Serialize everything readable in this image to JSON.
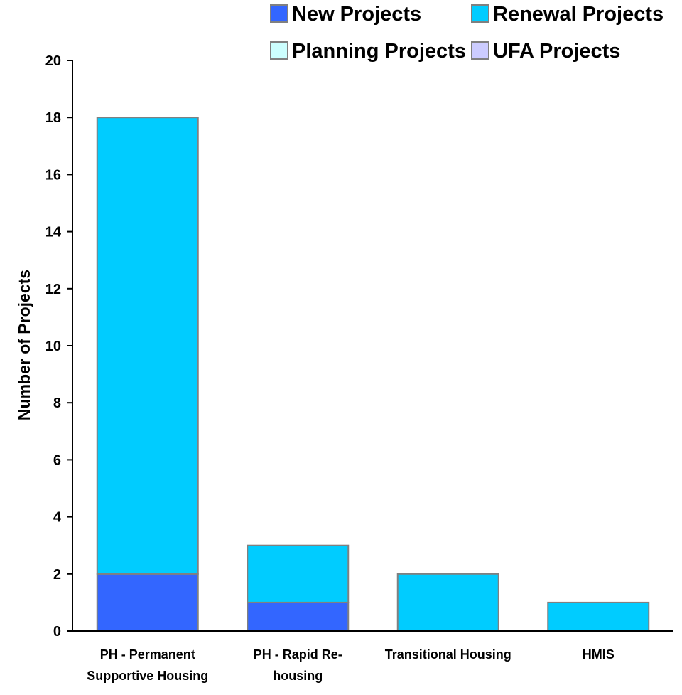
{
  "chart_data": {
    "type": "bar",
    "stacked": true,
    "categories": [
      [
        "PH - Permanent",
        "Supportive Housing"
      ],
      [
        "PH - Rapid Re-",
        "housing"
      ],
      [
        "Transitional Housing"
      ],
      [
        "HMIS"
      ]
    ],
    "series": [
      {
        "name": "New Projects",
        "color": "#3366FF",
        "values": [
          2,
          1,
          0,
          0
        ]
      },
      {
        "name": "Renewal Projects",
        "color": "#00CCFF",
        "values": [
          16,
          2,
          2,
          1
        ]
      },
      {
        "name": "Planning Projects",
        "color": "#CCFFFF",
        "values": [
          0,
          0,
          0,
          0
        ]
      },
      {
        "name": "UFA Projects",
        "color": "#CCCCFF",
        "values": [
          0,
          0,
          0,
          0
        ]
      }
    ],
    "xlabel": "",
    "ylabel": "Number of Projects",
    "ylim": [
      0,
      20
    ],
    "yticks": [
      0,
      2,
      4,
      6,
      8,
      10,
      12,
      14,
      16,
      18,
      20
    ],
    "grid": false,
    "legend_position": "top-right",
    "bar_outline_color": "#808080",
    "axis_color": "#000000"
  }
}
